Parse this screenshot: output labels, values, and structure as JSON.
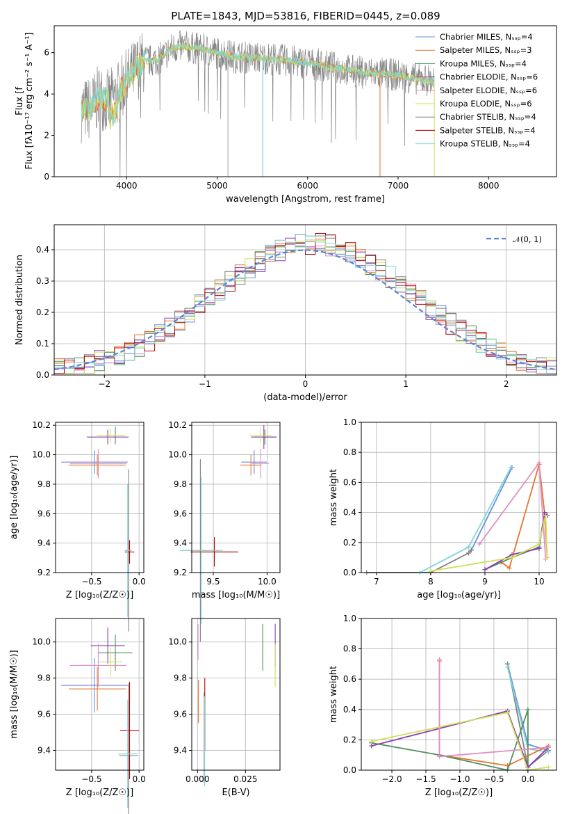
{
  "colors": {
    "chabrier_miles": "#6a8ed8",
    "salpeter_miles": "#e8732a",
    "kroupa_miles": "#4f8f5d",
    "chabrier_elodie": "#8a3fb0",
    "salpeter_elodie": "#e08ec4",
    "kroupa_elodie": "#cfe05a",
    "chabrier_stelib": "#7f7f7f",
    "salpeter_stelib": "#b00000",
    "kroupa_stelib": "#7fd6d8",
    "normal_curve": "#5a84d6"
  },
  "chart_data": [
    {
      "id": "spectrum",
      "type": "line",
      "title": "PLATE=1843, MJD=53816, FIBERID=0445, z=0.089",
      "xlabel": "wavelength [Angstrom, rest frame]",
      "ylabel": "Flux [f",
      "ylabel_full": "Flux [fλ10⁻¹⁷ erg cm⁻² s⁻¹ A⁻¹]",
      "xlim": [
        3200,
        8750
      ],
      "ylim": [
        0,
        7.3
      ],
      "xticks": [
        4000,
        5000,
        6000,
        7000,
        8000
      ],
      "yticks": [
        0,
        2,
        4,
        6
      ],
      "grid": false,
      "legend_position": "right",
      "legend": [
        "Chabrier MILES, N_SSP=4",
        "Salpeter MILES, N_SSP=3",
        "Kroupa MILES, N_SSP=4",
        "Chabrier ELODIE, N_SSP=6",
        "Salpeter ELODIE, N_SSP=6",
        "Kroupa ELODIE, N_SSP=6",
        "Chabrier STELIB, N_SSP=4",
        "Salpeter STELIB, N_SSP=4",
        "Kroupa STELIB, N_SSP=4"
      ],
      "series_envelope": {
        "x": [
          3500,
          3600,
          3700,
          3800,
          3900,
          4000,
          4100,
          4200,
          4300,
          4400,
          4500,
          4600,
          4800,
          5000,
          5200,
          5400,
          5600,
          5800,
          6000,
          6200,
          6400,
          6600,
          6800,
          7000,
          7200,
          7400
        ],
        "y": [
          3.2,
          3.3,
          3.9,
          3.6,
          4.0,
          4.6,
          5.2,
          5.6,
          5.6,
          5.8,
          6.2,
          6.3,
          6.2,
          6.0,
          5.8,
          5.75,
          5.7,
          5.6,
          5.5,
          5.35,
          5.2,
          5.05,
          5.0,
          4.9,
          4.75,
          4.65
        ]
      }
    },
    {
      "id": "residuals",
      "type": "histogram",
      "xlabel": "(data-model)/error",
      "ylabel": "Normed distribution",
      "xlim": [
        -2.5,
        2.5
      ],
      "ylim": [
        0,
        0.48
      ],
      "xticks": [
        -2,
        -1,
        0,
        1,
        2
      ],
      "yticks": [
        0.0,
        0.1,
        0.2,
        0.3,
        0.4
      ],
      "grid": true,
      "legend": [
        "𝒩(0, 1)"
      ],
      "legend_position": "top-right",
      "bin_edges_start": -2.5,
      "bin_width": 0.1
    },
    {
      "id": "age_vs_Z",
      "type": "errorbar",
      "xlabel": "Z [log₁₀(Z/Z☉)]",
      "ylabel": "age  [log₁₀(age/yr)]",
      "xlim": [
        -0.88,
        0.05
      ],
      "ylim": [
        9.2,
        10.22
      ],
      "xticks": [
        -0.5,
        0.0
      ],
      "yticks": [
        9.2,
        9.4,
        9.6,
        9.8,
        10.0,
        10.2
      ],
      "grid": true
    },
    {
      "id": "age_vs_mass",
      "type": "errorbar",
      "xlabel": "mass [log₁₀(M/M☉)]",
      "xlim": [
        9.3,
        10.12
      ],
      "ylim": [
        9.2,
        10.22
      ],
      "xticks": [
        9.5,
        10.0
      ],
      "yticks": [
        9.2,
        9.4,
        9.6,
        9.8,
        10.0,
        10.2
      ],
      "grid": true
    },
    {
      "id": "weight_vs_age",
      "type": "line",
      "xlabel": "age  [log₁₀(age/yr)]",
      "ylabel": "mass weight",
      "xlim": [
        6.72,
        10.32
      ],
      "ylim": [
        0,
        1.0
      ],
      "xticks": [
        7,
        8,
        9,
        10
      ],
      "yticks": [
        0.0,
        0.2,
        0.4,
        0.6,
        0.8,
        1.0
      ],
      "grid": true
    },
    {
      "id": "mass_vs_Z",
      "type": "errorbar",
      "xlabel": "Z [log₁₀(Z/Z☉)]",
      "ylabel": "mass [log₁₀(M/M☉)]",
      "xlim": [
        -0.88,
        0.05
      ],
      "ylim": [
        9.29,
        10.13
      ],
      "xticks": [
        -0.5,
        0.0
      ],
      "yticks": [
        9.4,
        9.6,
        9.8,
        10.0
      ],
      "grid": true
    },
    {
      "id": "mass_vs_ebv",
      "type": "errorbar",
      "xlabel": "E(B-V)",
      "xlim": [
        -0.003,
        0.043
      ],
      "ylim": [
        9.29,
        10.13
      ],
      "xticks": [
        0.0,
        0.025
      ],
      "xtick_labels": [
        "0.000",
        "0.025"
      ],
      "yticks": [
        9.4,
        9.6,
        9.8,
        10.0
      ],
      "grid": true
    },
    {
      "id": "weight_vs_Z",
      "type": "line",
      "xlabel": "Z [log₁₀(Z/Z☉)]",
      "ylabel": "mass weight",
      "xlim": [
        -2.45,
        0.42
      ],
      "ylim": [
        0,
        1.0
      ],
      "xticks": [
        -2.0,
        -1.5,
        -1.0,
        -0.5,
        0.0
      ],
      "yticks": [
        0.0,
        0.2,
        0.4,
        0.6,
        0.8,
        1.0
      ],
      "grid": true
    }
  ]
}
